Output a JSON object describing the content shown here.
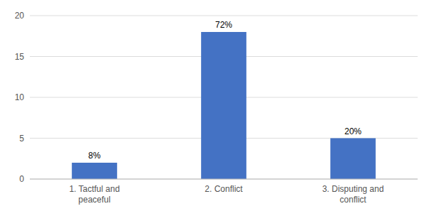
{
  "chart_data": {
    "type": "bar",
    "categories": [
      "1. Tactful and\npeaceful",
      "2. Conflict",
      "3. Disputing and\nconflict"
    ],
    "values": [
      2,
      18,
      5
    ],
    "value_labels": [
      "8%",
      "72%",
      "20%"
    ],
    "data_labels": true,
    "color": "#4472C4",
    "ylim": [
      0,
      20
    ],
    "yticks": [
      0,
      5,
      10,
      15,
      20
    ],
    "grid": true
  }
}
